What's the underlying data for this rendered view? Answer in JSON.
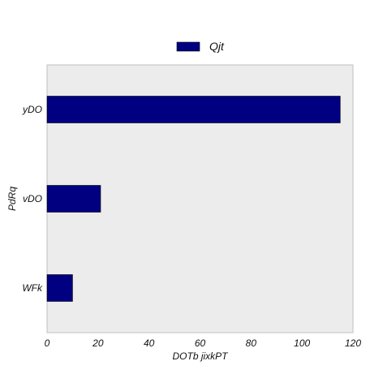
{
  "chart_data": {
    "type": "bar",
    "orientation": "horizontal",
    "categories": [
      "WFk",
      "vDO",
      "yDO"
    ],
    "series": [
      {
        "name": "Qjt",
        "values": [
          10,
          21,
          115
        ],
        "color": "#000080"
      }
    ],
    "title": "",
    "xlabel": "DOTb jixkPT",
    "ylabel": "PdRq",
    "xlim": [
      0,
      120
    ],
    "xticks": [
      0,
      20,
      40,
      60,
      80,
      100,
      120
    ],
    "grid": false,
    "legend_position": "top-center",
    "plot_background": "#ececec",
    "frame_color": "#bfbfbf"
  }
}
